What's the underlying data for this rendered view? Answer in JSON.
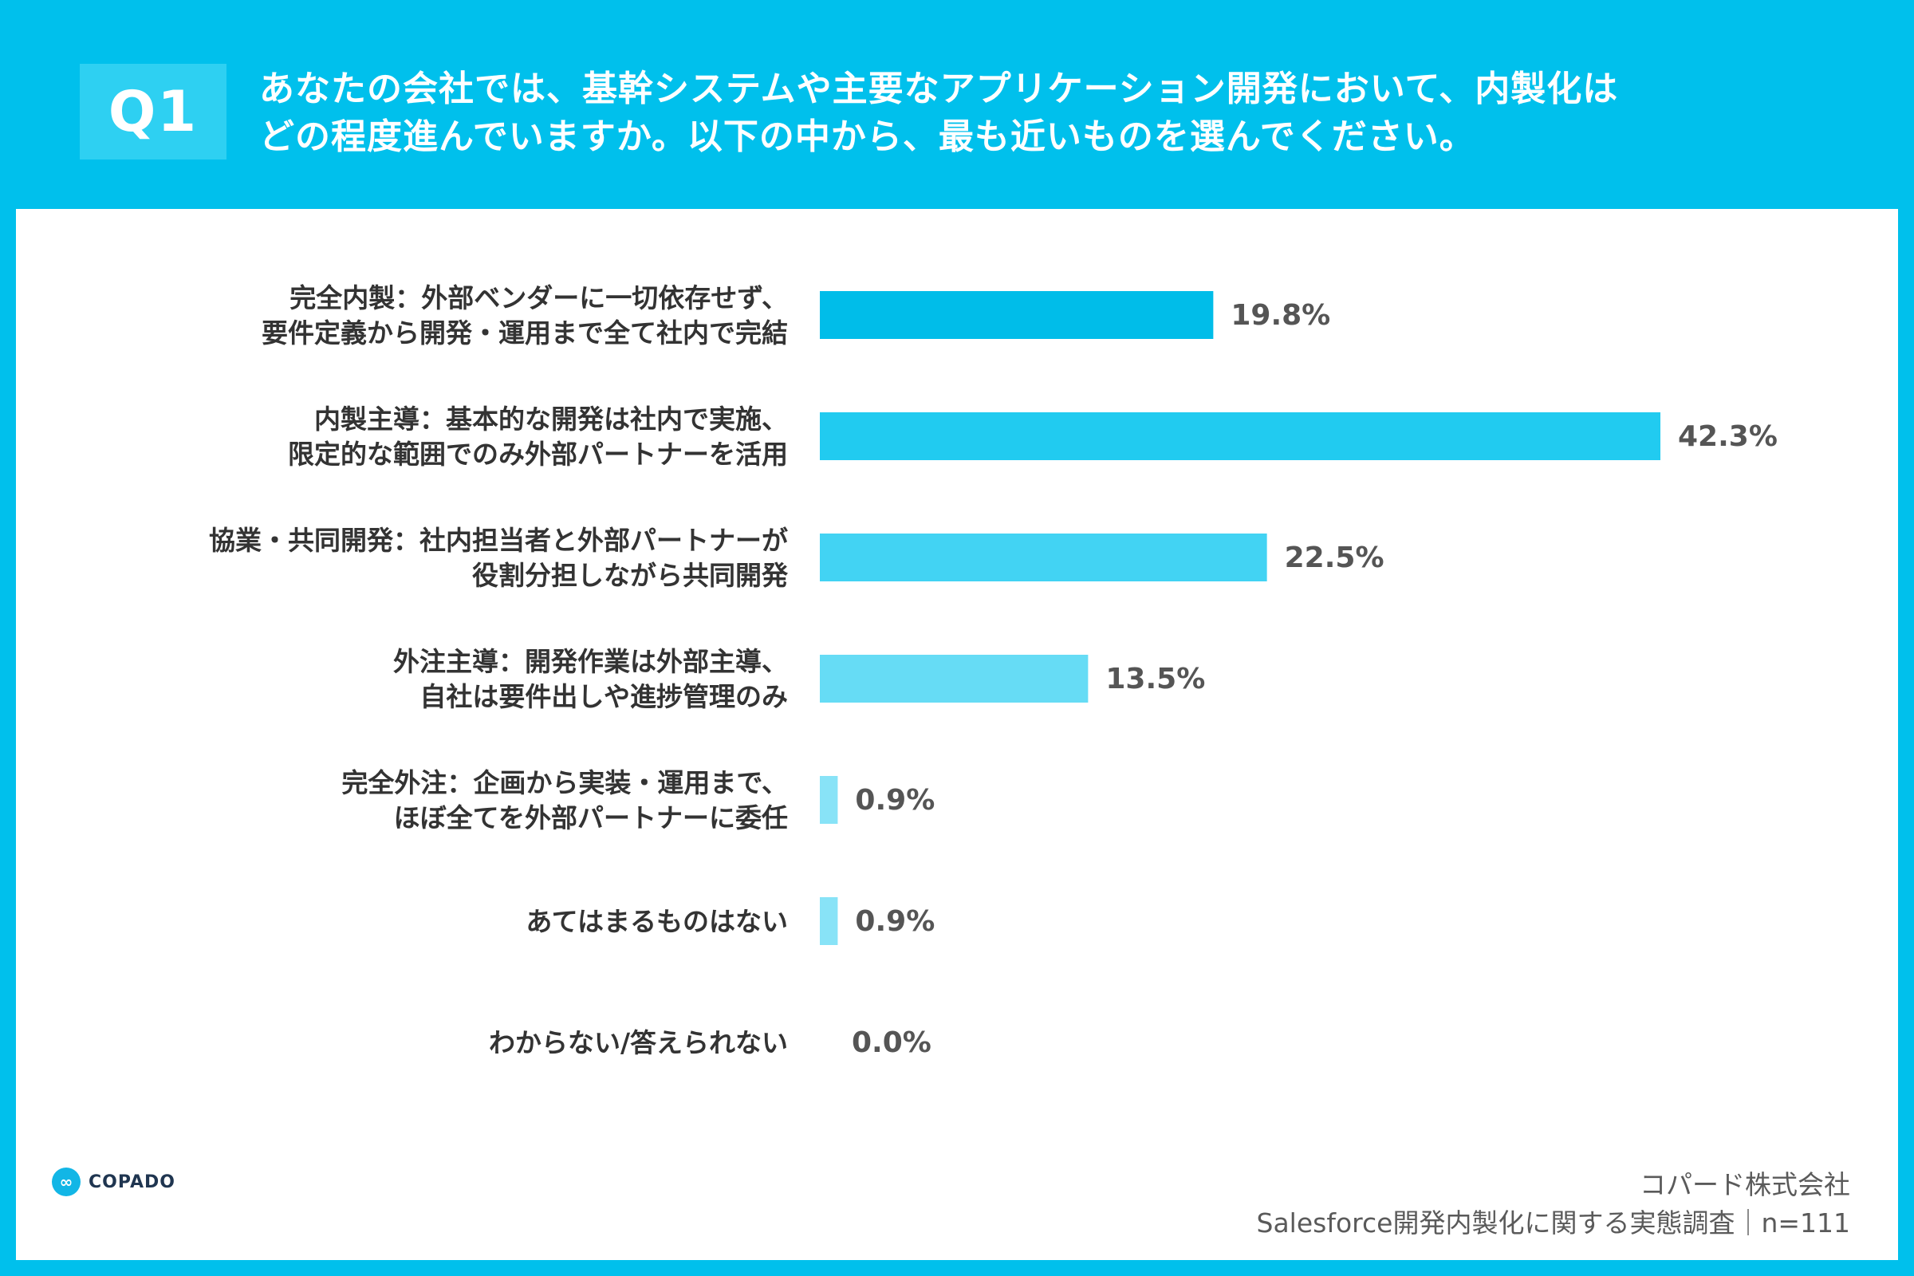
{
  "badge": "Q1",
  "question": {
    "line1": "あなたの会社では、基幹システムや主要なアプリケーション開発において、内製化は",
    "line2": "どの程度進んでいますか。以下の中から、最も近いものを選んでください。"
  },
  "colors": {
    "header_bg": "#00c0ec",
    "badge_bg": "#2ed0f2",
    "bar_colors": [
      "#00bde9",
      "#21cbf0",
      "#42d3f3",
      "#66dcf5",
      "#88e3f7",
      "#88e3f7",
      "#88e3f7"
    ]
  },
  "chart_data": {
    "type": "bar",
    "orientation": "horizontal",
    "title": "",
    "xlabel": "",
    "ylabel": "",
    "xlim": [
      0,
      45
    ],
    "grid": false,
    "categories": [
      [
        "完全内製：外部ベンダーに一切依存せず、",
        "要件定義から開発・運用まで全て社内で完結"
      ],
      [
        "内製主導：基本的な開発は社内で実施、",
        "限定的な範囲でのみ外部パートナーを活用"
      ],
      [
        "協業・共同開発：社内担当者と外部パートナーが",
        "役割分担しながら共同開発"
      ],
      [
        "外注主導：開発作業は外部主導、",
        "自社は要件出しや進捗管理のみ"
      ],
      [
        "完全外注：企画から実装・運用まで、",
        "ほぼ全てを外部パートナーに委任"
      ],
      [
        "あてはまるものはない"
      ],
      [
        "わからない/答えられない"
      ]
    ],
    "values": [
      19.8,
      42.3,
      22.5,
      13.5,
      0.9,
      0.9,
      0.0
    ],
    "value_labels": [
      "19.8%",
      "42.3%",
      "22.5%",
      "13.5%",
      "0.9%",
      "0.9%",
      "0.0%"
    ]
  },
  "logo": {
    "icon": "infinity-icon",
    "text": "COPADO"
  },
  "credit": {
    "line1": "コパード株式会社",
    "line2": "Salesforce開発内製化に関する実態調査｜n=111"
  }
}
